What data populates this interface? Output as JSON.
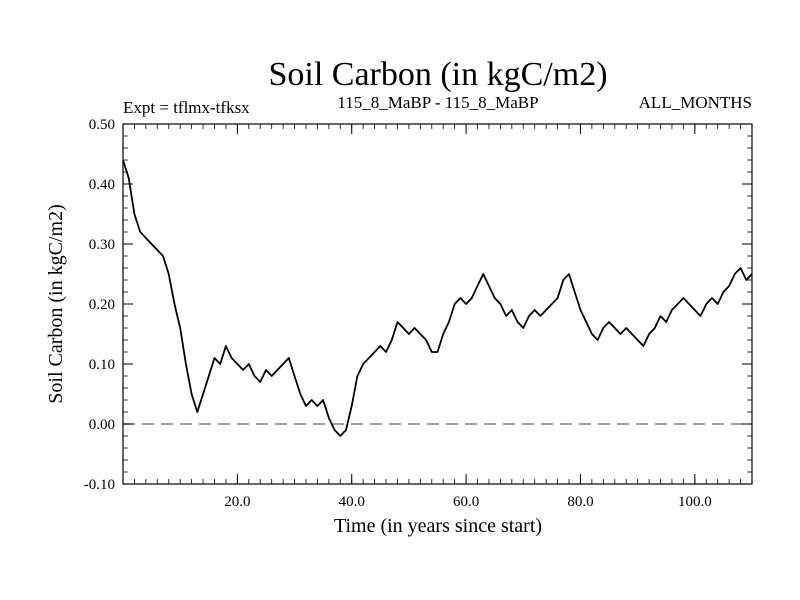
{
  "chart_data": {
    "type": "line",
    "title": "Soil Carbon (in kgC/m2)",
    "subtitle_left": "Expt = tflmx-tfksx",
    "subtitle_center": "115_8_MaBP - 115_8_MaBP",
    "subtitle_right": "ALL_MONTHS",
    "xlabel": "Time (in years since start)",
    "ylabel": "Soil Carbon (in kgC/m2)",
    "xlim": [
      0,
      110
    ],
    "ylim": [
      -0.1,
      0.5
    ],
    "x_ticks": [
      20,
      40,
      60,
      80,
      100
    ],
    "x_tick_labels": [
      "20.0",
      "40.0",
      "60.0",
      "80.0",
      "100.0"
    ],
    "y_ticks": [
      -0.1,
      0.0,
      0.1,
      0.2,
      0.3,
      0.4,
      0.5
    ],
    "y_tick_labels": [
      "-0.10",
      "0.00",
      "0.10",
      "0.20",
      "0.30",
      "0.40",
      "0.50"
    ],
    "reference_line": 0.0,
    "series": [
      {
        "name": "Soil Carbon",
        "x": [
          0,
          1,
          2,
          3,
          4,
          5,
          6,
          7,
          8,
          9,
          10,
          11,
          12,
          13,
          14,
          15,
          16,
          17,
          18,
          19,
          20,
          21,
          22,
          23,
          24,
          25,
          26,
          27,
          28,
          29,
          30,
          31,
          32,
          33,
          34,
          35,
          36,
          37,
          38,
          39,
          40,
          41,
          42,
          43,
          44,
          45,
          46,
          47,
          48,
          49,
          50,
          51,
          52,
          53,
          54,
          55,
          56,
          57,
          58,
          59,
          60,
          61,
          62,
          63,
          64,
          65,
          66,
          67,
          68,
          69,
          70,
          71,
          72,
          73,
          74,
          75,
          76,
          77,
          78,
          79,
          80,
          81,
          82,
          83,
          84,
          85,
          86,
          87,
          88,
          89,
          90,
          91,
          92,
          93,
          94,
          95,
          96,
          97,
          98,
          99,
          100,
          101,
          102,
          103,
          104,
          105,
          106,
          107,
          108,
          109,
          110
        ],
        "values": [
          0.44,
          0.41,
          0.35,
          0.32,
          0.31,
          0.3,
          0.29,
          0.28,
          0.25,
          0.2,
          0.16,
          0.1,
          0.05,
          0.02,
          0.05,
          0.08,
          0.11,
          0.1,
          0.13,
          0.11,
          0.1,
          0.09,
          0.1,
          0.08,
          0.07,
          0.09,
          0.08,
          0.09,
          0.1,
          0.11,
          0.08,
          0.05,
          0.03,
          0.04,
          0.03,
          0.04,
          0.01,
          -0.01,
          -0.02,
          -0.01,
          0.03,
          0.08,
          0.1,
          0.11,
          0.12,
          0.13,
          0.12,
          0.14,
          0.17,
          0.16,
          0.15,
          0.16,
          0.15,
          0.14,
          0.12,
          0.12,
          0.15,
          0.17,
          0.2,
          0.21,
          0.2,
          0.21,
          0.23,
          0.25,
          0.23,
          0.21,
          0.2,
          0.18,
          0.19,
          0.17,
          0.16,
          0.18,
          0.19,
          0.18,
          0.19,
          0.2,
          0.21,
          0.24,
          0.25,
          0.22,
          0.19,
          0.17,
          0.15,
          0.14,
          0.16,
          0.17,
          0.16,
          0.15,
          0.16,
          0.15,
          0.14,
          0.13,
          0.15,
          0.16,
          0.18,
          0.17,
          0.19,
          0.2,
          0.21,
          0.2,
          0.19,
          0.18,
          0.2,
          0.21,
          0.2,
          0.22,
          0.23,
          0.25,
          0.26,
          0.24,
          0.25
        ]
      }
    ],
    "colors": {
      "line": "#000000",
      "axis": "#000000",
      "reference": "#808080",
      "background": "#ffffff"
    }
  }
}
